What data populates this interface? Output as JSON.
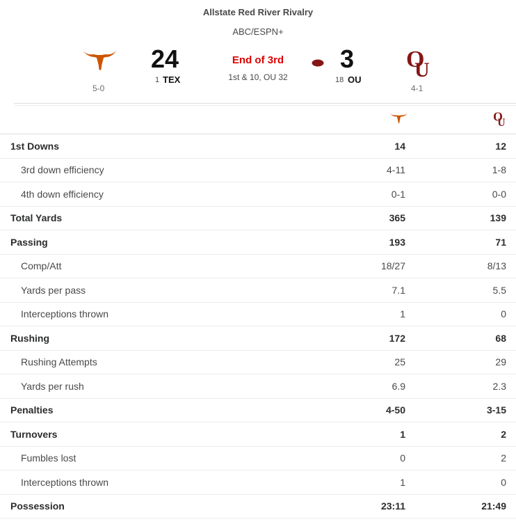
{
  "game": {
    "event": "Allstate Red River Rivalry",
    "network": "ABC/ESPN+",
    "status": "End of 3rd",
    "situation": "1st & 10, OU 32",
    "possession": "OU"
  },
  "home": {
    "score": "24",
    "rank": "1",
    "abbr": "TEX",
    "record": "5-0",
    "logo": "longhorn-logo",
    "color": "#cc5500"
  },
  "away": {
    "score": "3",
    "rank": "18",
    "abbr": "OU",
    "record": "4-1",
    "logo": "ou-logo",
    "color": "#841617"
  },
  "stats": [
    {
      "label": "1st Downs",
      "home": "14",
      "away": "12",
      "type": "main"
    },
    {
      "label": "3rd down efficiency",
      "home": "4-11",
      "away": "1-8",
      "type": "sub"
    },
    {
      "label": "4th down efficiency",
      "home": "0-1",
      "away": "0-0",
      "type": "sub"
    },
    {
      "label": "Total Yards",
      "home": "365",
      "away": "139",
      "type": "main"
    },
    {
      "label": "Passing",
      "home": "193",
      "away": "71",
      "type": "main"
    },
    {
      "label": "Comp/Att",
      "home": "18/27",
      "away": "8/13",
      "type": "sub"
    },
    {
      "label": "Yards per pass",
      "home": "7.1",
      "away": "5.5",
      "type": "sub"
    },
    {
      "label": "Interceptions thrown",
      "home": "1",
      "away": "0",
      "type": "sub"
    },
    {
      "label": "Rushing",
      "home": "172",
      "away": "68",
      "type": "main"
    },
    {
      "label": "Rushing Attempts",
      "home": "25",
      "away": "29",
      "type": "sub"
    },
    {
      "label": "Yards per rush",
      "home": "6.9",
      "away": "2.3",
      "type": "sub"
    },
    {
      "label": "Penalties",
      "home": "4-50",
      "away": "3-15",
      "type": "main"
    },
    {
      "label": "Turnovers",
      "home": "1",
      "away": "2",
      "type": "main"
    },
    {
      "label": "Fumbles lost",
      "home": "0",
      "away": "2",
      "type": "sub"
    },
    {
      "label": "Interceptions thrown",
      "home": "1",
      "away": "0",
      "type": "sub"
    },
    {
      "label": "Possession",
      "home": "23:11",
      "away": "21:49",
      "type": "main"
    }
  ]
}
